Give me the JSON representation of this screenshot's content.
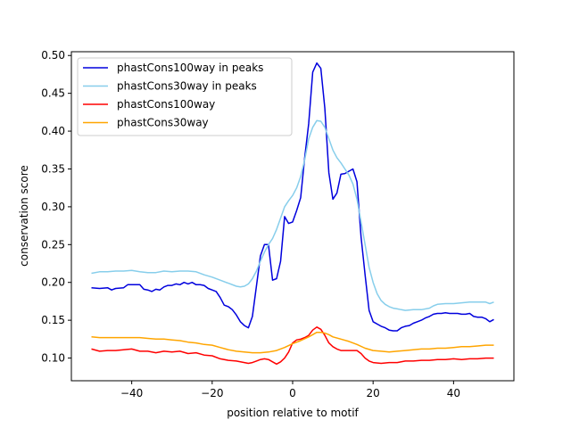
{
  "chart_data": {
    "type": "line",
    "title": "",
    "xlabel": "position relative to motif",
    "ylabel": "conservation score",
    "xlim": [
      -55,
      55
    ],
    "ylim": [
      0.07,
      0.505
    ],
    "xticks": [
      -40,
      -20,
      0,
      20,
      40
    ],
    "yticks": [
      0.1,
      0.15,
      0.2,
      0.25,
      0.3,
      0.35,
      0.4,
      0.45,
      0.5
    ],
    "grid": false,
    "legend_position": "top-left",
    "series": [
      {
        "name": "phastCons100way in peaks",
        "color": "#0000dd",
        "points": [
          [
            -50,
            0.193
          ],
          [
            -48,
            0.192
          ],
          [
            -46,
            0.193
          ],
          [
            -45,
            0.19
          ],
          [
            -44,
            0.192
          ],
          [
            -42,
            0.193
          ],
          [
            -41,
            0.197
          ],
          [
            -38,
            0.197
          ],
          [
            -37,
            0.191
          ],
          [
            -36,
            0.19
          ],
          [
            -35,
            0.188
          ],
          [
            -34,
            0.191
          ],
          [
            -33,
            0.19
          ],
          [
            -32,
            0.194
          ],
          [
            -31,
            0.196
          ],
          [
            -30,
            0.196
          ],
          [
            -29,
            0.198
          ],
          [
            -28,
            0.197
          ],
          [
            -27,
            0.2
          ],
          [
            -26,
            0.198
          ],
          [
            -25,
            0.2
          ],
          [
            -24,
            0.197
          ],
          [
            -23,
            0.197
          ],
          [
            -22,
            0.196
          ],
          [
            -21,
            0.192
          ],
          [
            -20,
            0.19
          ],
          [
            -19,
            0.188
          ],
          [
            -18,
            0.18
          ],
          [
            -17,
            0.17
          ],
          [
            -16,
            0.168
          ],
          [
            -15,
            0.164
          ],
          [
            -14,
            0.157
          ],
          [
            -13,
            0.148
          ],
          [
            -12,
            0.143
          ],
          [
            -11,
            0.14
          ],
          [
            -10,
            0.155
          ],
          [
            -9,
            0.195
          ],
          [
            -8,
            0.235
          ],
          [
            -7,
            0.25
          ],
          [
            -6,
            0.25
          ],
          [
            -5,
            0.203
          ],
          [
            -4,
            0.205
          ],
          [
            -3,
            0.228
          ],
          [
            -2,
            0.287
          ],
          [
            -1,
            0.278
          ],
          [
            0,
            0.28
          ],
          [
            1,
            0.295
          ],
          [
            2,
            0.312
          ],
          [
            3,
            0.365
          ],
          [
            4,
            0.41
          ],
          [
            5,
            0.478
          ],
          [
            6,
            0.49
          ],
          [
            7,
            0.483
          ],
          [
            8,
            0.43
          ],
          [
            9,
            0.345
          ],
          [
            10,
            0.31
          ],
          [
            11,
            0.318
          ],
          [
            12,
            0.343
          ],
          [
            13,
            0.344
          ],
          [
            14,
            0.347
          ],
          [
            15,
            0.35
          ],
          [
            16,
            0.333
          ],
          [
            17,
            0.26
          ],
          [
            18,
            0.21
          ],
          [
            19,
            0.163
          ],
          [
            20,
            0.148
          ],
          [
            21,
            0.145
          ],
          [
            22,
            0.142
          ],
          [
            23,
            0.14
          ],
          [
            24,
            0.137
          ],
          [
            25,
            0.136
          ],
          [
            26,
            0.136
          ],
          [
            27,
            0.14
          ],
          [
            28,
            0.142
          ],
          [
            29,
            0.143
          ],
          [
            30,
            0.146
          ],
          [
            31,
            0.148
          ],
          [
            32,
            0.15
          ],
          [
            33,
            0.153
          ],
          [
            34,
            0.155
          ],
          [
            35,
            0.158
          ],
          [
            36,
            0.159
          ],
          [
            37,
            0.159
          ],
          [
            38,
            0.16
          ],
          [
            39,
            0.159
          ],
          [
            40,
            0.159
          ],
          [
            41,
            0.159
          ],
          [
            42,
            0.158
          ],
          [
            43,
            0.158
          ],
          [
            44,
            0.159
          ],
          [
            45,
            0.155
          ],
          [
            46,
            0.154
          ],
          [
            47,
            0.154
          ],
          [
            48,
            0.152
          ],
          [
            49,
            0.148
          ],
          [
            50,
            0.151
          ]
        ]
      },
      {
        "name": "phastCons30way in peaks",
        "color": "#87ceeb",
        "points": [
          [
            -50,
            0.212
          ],
          [
            -48,
            0.214
          ],
          [
            -46,
            0.214
          ],
          [
            -44,
            0.215
          ],
          [
            -42,
            0.215
          ],
          [
            -40,
            0.216
          ],
          [
            -38,
            0.214
          ],
          [
            -36,
            0.213
          ],
          [
            -34,
            0.213
          ],
          [
            -32,
            0.215
          ],
          [
            -30,
            0.214
          ],
          [
            -28,
            0.215
          ],
          [
            -26,
            0.215
          ],
          [
            -24,
            0.214
          ],
          [
            -22,
            0.21
          ],
          [
            -20,
            0.207
          ],
          [
            -18,
            0.203
          ],
          [
            -16,
            0.199
          ],
          [
            -14,
            0.195
          ],
          [
            -13,
            0.194
          ],
          [
            -12,
            0.195
          ],
          [
            -11,
            0.198
          ],
          [
            -10,
            0.205
          ],
          [
            -9,
            0.215
          ],
          [
            -8,
            0.228
          ],
          [
            -7,
            0.24
          ],
          [
            -6,
            0.25
          ],
          [
            -5,
            0.258
          ],
          [
            -4,
            0.27
          ],
          [
            -3,
            0.285
          ],
          [
            -2,
            0.3
          ],
          [
            -1,
            0.308
          ],
          [
            0,
            0.315
          ],
          [
            1,
            0.325
          ],
          [
            2,
            0.34
          ],
          [
            3,
            0.362
          ],
          [
            4,
            0.39
          ],
          [
            5,
            0.405
          ],
          [
            6,
            0.414
          ],
          [
            7,
            0.413
          ],
          [
            8,
            0.405
          ],
          [
            9,
            0.39
          ],
          [
            10,
            0.375
          ],
          [
            11,
            0.365
          ],
          [
            12,
            0.358
          ],
          [
            13,
            0.35
          ],
          [
            14,
            0.342
          ],
          [
            15,
            0.33
          ],
          [
            16,
            0.31
          ],
          [
            17,
            0.28
          ],
          [
            18,
            0.25
          ],
          [
            19,
            0.22
          ],
          [
            20,
            0.2
          ],
          [
            21,
            0.185
          ],
          [
            22,
            0.176
          ],
          [
            23,
            0.171
          ],
          [
            24,
            0.168
          ],
          [
            25,
            0.166
          ],
          [
            26,
            0.165
          ],
          [
            27,
            0.164
          ],
          [
            28,
            0.163
          ],
          [
            30,
            0.164
          ],
          [
            32,
            0.164
          ],
          [
            34,
            0.166
          ],
          [
            35,
            0.169
          ],
          [
            36,
            0.171
          ],
          [
            38,
            0.172
          ],
          [
            40,
            0.172
          ],
          [
            42,
            0.173
          ],
          [
            44,
            0.174
          ],
          [
            46,
            0.174
          ],
          [
            48,
            0.174
          ],
          [
            49,
            0.172
          ],
          [
            50,
            0.174
          ]
        ]
      },
      {
        "name": "phastCons100way",
        "color": "#ff0000",
        "points": [
          [
            -50,
            0.112
          ],
          [
            -48,
            0.109
          ],
          [
            -46,
            0.11
          ],
          [
            -44,
            0.11
          ],
          [
            -42,
            0.111
          ],
          [
            -40,
            0.112
          ],
          [
            -38,
            0.109
          ],
          [
            -36,
            0.109
          ],
          [
            -34,
            0.107
          ],
          [
            -32,
            0.109
          ],
          [
            -30,
            0.108
          ],
          [
            -28,
            0.109
          ],
          [
            -26,
            0.106
          ],
          [
            -24,
            0.107
          ],
          [
            -22,
            0.104
          ],
          [
            -20,
            0.103
          ],
          [
            -18,
            0.099
          ],
          [
            -16,
            0.097
          ],
          [
            -14,
            0.096
          ],
          [
            -12,
            0.094
          ],
          [
            -11,
            0.093
          ],
          [
            -10,
            0.094
          ],
          [
            -9,
            0.096
          ],
          [
            -8,
            0.098
          ],
          [
            -7,
            0.099
          ],
          [
            -6,
            0.098
          ],
          [
            -5,
            0.095
          ],
          [
            -4,
            0.092
          ],
          [
            -3,
            0.095
          ],
          [
            -2,
            0.1
          ],
          [
            -1,
            0.108
          ],
          [
            0,
            0.12
          ],
          [
            1,
            0.124
          ],
          [
            2,
            0.125
          ],
          [
            3,
            0.127
          ],
          [
            4,
            0.13
          ],
          [
            5,
            0.137
          ],
          [
            6,
            0.141
          ],
          [
            7,
            0.138
          ],
          [
            8,
            0.13
          ],
          [
            9,
            0.12
          ],
          [
            10,
            0.115
          ],
          [
            11,
            0.112
          ],
          [
            12,
            0.11
          ],
          [
            14,
            0.11
          ],
          [
            16,
            0.11
          ],
          [
            17,
            0.106
          ],
          [
            18,
            0.1
          ],
          [
            19,
            0.096
          ],
          [
            20,
            0.094
          ],
          [
            22,
            0.093
          ],
          [
            24,
            0.094
          ],
          [
            26,
            0.094
          ],
          [
            28,
            0.096
          ],
          [
            30,
            0.096
          ],
          [
            32,
            0.097
          ],
          [
            34,
            0.097
          ],
          [
            36,
            0.098
          ],
          [
            38,
            0.098
          ],
          [
            40,
            0.099
          ],
          [
            42,
            0.098
          ],
          [
            44,
            0.099
          ],
          [
            46,
            0.099
          ],
          [
            48,
            0.1
          ],
          [
            50,
            0.1
          ]
        ]
      },
      {
        "name": "phastCons30way",
        "color": "#ffa500",
        "points": [
          [
            -50,
            0.128
          ],
          [
            -48,
            0.127
          ],
          [
            -46,
            0.127
          ],
          [
            -44,
            0.127
          ],
          [
            -42,
            0.127
          ],
          [
            -40,
            0.127
          ],
          [
            -38,
            0.127
          ],
          [
            -36,
            0.126
          ],
          [
            -34,
            0.125
          ],
          [
            -32,
            0.125
          ],
          [
            -30,
            0.124
          ],
          [
            -28,
            0.123
          ],
          [
            -26,
            0.121
          ],
          [
            -24,
            0.12
          ],
          [
            -22,
            0.118
          ],
          [
            -20,
            0.117
          ],
          [
            -18,
            0.114
          ],
          [
            -16,
            0.111
          ],
          [
            -14,
            0.109
          ],
          [
            -12,
            0.108
          ],
          [
            -10,
            0.107
          ],
          [
            -8,
            0.107
          ],
          [
            -6,
            0.108
          ],
          [
            -4,
            0.11
          ],
          [
            -2,
            0.114
          ],
          [
            0,
            0.119
          ],
          [
            2,
            0.123
          ],
          [
            4,
            0.128
          ],
          [
            5,
            0.131
          ],
          [
            6,
            0.134
          ],
          [
            7,
            0.134
          ],
          [
            8,
            0.133
          ],
          [
            9,
            0.131
          ],
          [
            10,
            0.128
          ],
          [
            12,
            0.125
          ],
          [
            14,
            0.122
          ],
          [
            16,
            0.118
          ],
          [
            18,
            0.113
          ],
          [
            20,
            0.11
          ],
          [
            22,
            0.109
          ],
          [
            24,
            0.108
          ],
          [
            26,
            0.109
          ],
          [
            28,
            0.11
          ],
          [
            30,
            0.111
          ],
          [
            32,
            0.112
          ],
          [
            34,
            0.112
          ],
          [
            36,
            0.113
          ],
          [
            38,
            0.113
          ],
          [
            40,
            0.114
          ],
          [
            42,
            0.115
          ],
          [
            44,
            0.115
          ],
          [
            46,
            0.116
          ],
          [
            48,
            0.117
          ],
          [
            50,
            0.117
          ]
        ]
      }
    ]
  }
}
